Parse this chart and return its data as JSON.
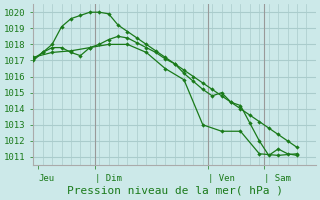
{
  "title": "Pression niveau de la mer( hPa )",
  "background_color": "#cce9e9",
  "grid_color": "#aacccc",
  "line_color": "#1a7a1a",
  "ylim": [
    1010.5,
    1020.5
  ],
  "yticks": [
    1011,
    1012,
    1013,
    1014,
    1015,
    1016,
    1017,
    1018,
    1019,
    1020
  ],
  "xlim": [
    0,
    60
  ],
  "day_labels": [
    "Jeu",
    "| Dim",
    "| Ven",
    "| Sam"
  ],
  "day_positions": [
    1,
    13,
    37,
    49
  ],
  "vline_positions": [
    13,
    37,
    49
  ],
  "series1_x": [
    0,
    2,
    4,
    6,
    8,
    10,
    12,
    14,
    16,
    18,
    20,
    22,
    24,
    26,
    28,
    30,
    32,
    34,
    36,
    38,
    40,
    42,
    44,
    46,
    48,
    50,
    52,
    54,
    56
  ],
  "series1_y": [
    1017.1,
    1017.5,
    1017.8,
    1017.8,
    1017.5,
    1017.3,
    1017.8,
    1018.0,
    1018.3,
    1018.5,
    1018.4,
    1018.1,
    1017.8,
    1017.5,
    1017.1,
    1016.8,
    1016.2,
    1015.7,
    1015.2,
    1014.8,
    1015.0,
    1014.4,
    1014.2,
    1013.1,
    1012.0,
    1011.1,
    1011.5,
    1011.2,
    1011.1
  ],
  "series2_x": [
    0,
    2,
    4,
    6,
    8,
    10,
    12,
    14,
    16,
    18,
    20,
    22,
    24,
    26,
    28,
    30,
    32,
    34,
    36,
    38,
    40,
    42,
    44,
    46,
    48,
    50,
    52,
    54,
    56
  ],
  "series2_y": [
    1017.0,
    1017.5,
    1018.0,
    1019.1,
    1019.6,
    1019.8,
    1020.0,
    1020.0,
    1019.9,
    1019.2,
    1018.8,
    1018.4,
    1018.0,
    1017.6,
    1017.2,
    1016.8,
    1016.4,
    1016.0,
    1015.6,
    1015.2,
    1014.8,
    1014.4,
    1014.0,
    1013.6,
    1013.2,
    1012.8,
    1012.4,
    1012.0,
    1011.6
  ],
  "series3_x": [
    0,
    4,
    8,
    12,
    16,
    20,
    24,
    28,
    32,
    36,
    40,
    44,
    48,
    52,
    56
  ],
  "series3_y": [
    1017.2,
    1017.5,
    1017.6,
    1017.8,
    1018.0,
    1018.0,
    1017.5,
    1016.5,
    1015.8,
    1013.0,
    1012.6,
    1012.6,
    1011.2,
    1011.1,
    1011.2
  ],
  "tick_fontsize": 6.5,
  "xlabel_fontsize": 8
}
